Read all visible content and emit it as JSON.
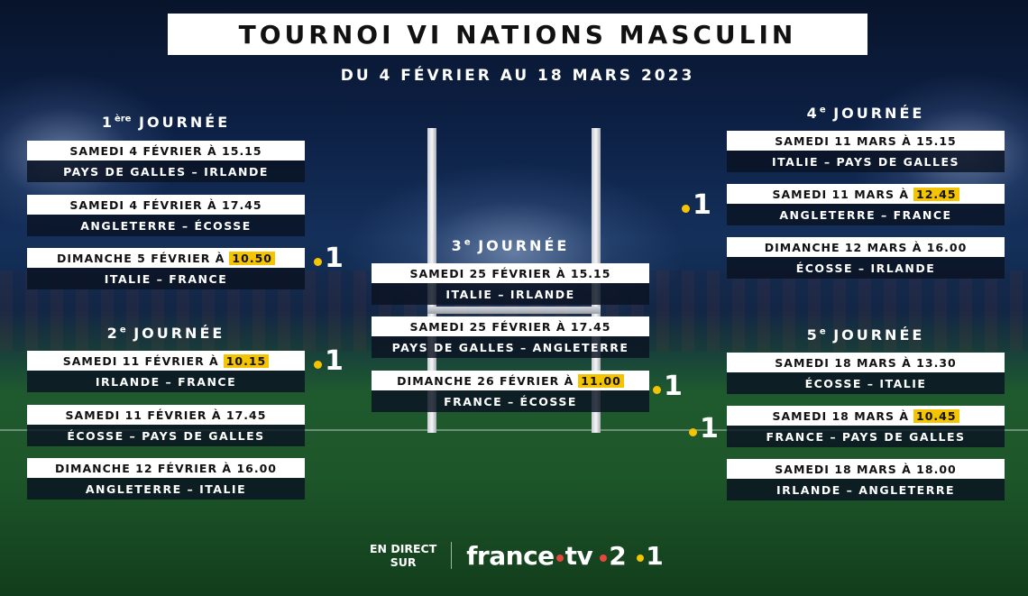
{
  "title": "TOURNOI VI NATIONS MASCULIN",
  "subtitle": "DU 4 FÉVRIER AU 18 MARS 2023",
  "rounds": [
    {
      "num": "1",
      "sup": "ère",
      "label": "JOURNÉE",
      "matches": [
        {
          "date": "SAMEDI 4 FÉVRIER À 15.15",
          "time_highlight": "",
          "teams": "PAYS DE GALLES – IRLANDE"
        },
        {
          "date": "SAMEDI 4 FÉVRIER À 17.45",
          "time_highlight": "",
          "teams": "ANGLETERRE – ÉCOSSE"
        },
        {
          "date": "DIMANCHE 5 FÉVRIER À",
          "time_highlight": "10.50",
          "teams": "ITALIE – FRANCE"
        }
      ]
    },
    {
      "num": "2",
      "sup": "e",
      "label": "JOURNÉE",
      "matches": [
        {
          "date": "SAMEDI 11 FÉVRIER À",
          "time_highlight": "10.15",
          "teams": "IRLANDE – FRANCE"
        },
        {
          "date": "SAMEDI 11 FÉVRIER À 17.45",
          "time_highlight": "",
          "teams": "ÉCOSSE – PAYS DE GALLES"
        },
        {
          "date": "DIMANCHE 12 FÉVRIER À 16.00",
          "time_highlight": "",
          "teams": "ANGLETERRE – ITALIE"
        }
      ]
    },
    {
      "num": "3",
      "sup": "e",
      "label": "JOURNÉE",
      "matches": [
        {
          "date": "SAMEDI 25 FÉVRIER À 15.15",
          "time_highlight": "",
          "teams": "ITALIE – IRLANDE"
        },
        {
          "date": "SAMEDI 25 FÉVRIER À 17.45",
          "time_highlight": "",
          "teams": "PAYS DE GALLES – ANGLETERRE"
        },
        {
          "date": "DIMANCHE 26 FÉVRIER À",
          "time_highlight": "11.00",
          "teams": "FRANCE – ÉCOSSE"
        }
      ]
    },
    {
      "num": "4",
      "sup": "e",
      "label": "JOURNÉE",
      "matches": [
        {
          "date": "SAMEDI 11 MARS À 15.15",
          "time_highlight": "",
          "teams": "ITALIE – PAYS DE GALLES"
        },
        {
          "date": "SAMEDI 11 MARS À",
          "time_highlight": "12.45",
          "teams": "ANGLETERRE – FRANCE"
        },
        {
          "date": "DIMANCHE 12 MARS À 16.00",
          "time_highlight": "",
          "teams": "ÉCOSSE – IRLANDE"
        }
      ]
    },
    {
      "num": "5",
      "sup": "e",
      "label": "JOURNÉE",
      "matches": [
        {
          "date": "SAMEDI 18 MARS À 13.30",
          "time_highlight": "",
          "teams": "ÉCOSSE – ITALIE"
        },
        {
          "date": "SAMEDI 18 MARS À",
          "time_highlight": "10.45",
          "teams": "FRANCE – PAYS DE GALLES"
        },
        {
          "date": "SAMEDI 18 MARS À 18.00",
          "time_highlight": "",
          "teams": "IRLANDE – ANGLETERRE"
        }
      ]
    }
  ],
  "channel_label": "1",
  "footer": {
    "direct_line1": "EN DIRECT",
    "direct_line2": "SUR",
    "brand_part1": "france",
    "brand_part2": "tv",
    "channel2": "2",
    "channel1": "1"
  },
  "colors": {
    "highlight": "#f5c400",
    "dot_red": "#e8453c",
    "background": "#0d2146",
    "pitch": "#1f5a2e"
  }
}
